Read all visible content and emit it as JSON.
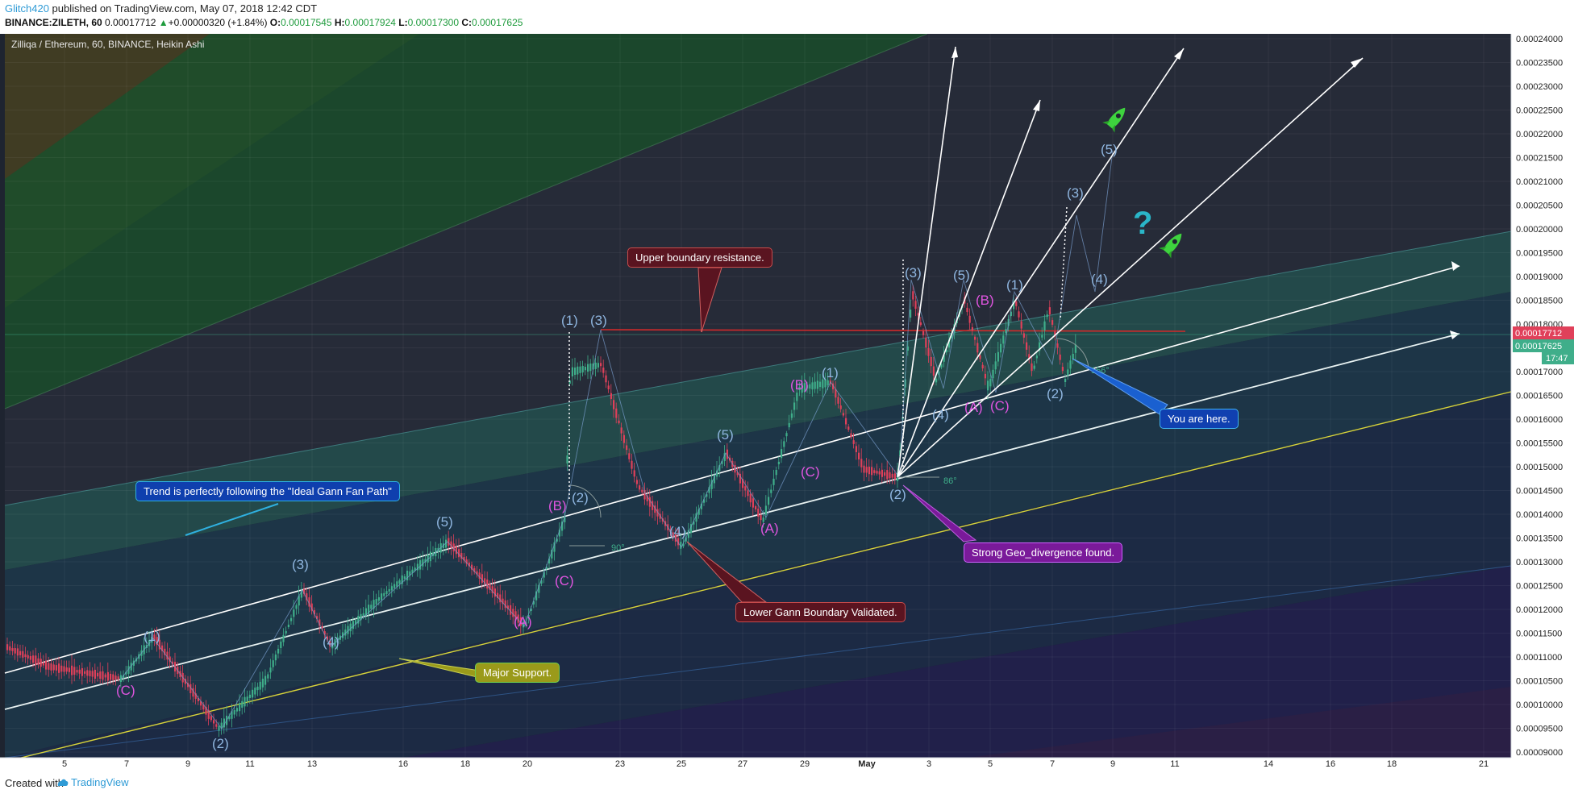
{
  "header": {
    "author": "Glitch420",
    "published_text": "published on TradingView.com, May 07, 2018 12:42 CDT",
    "symbol": "BINANCE:ZILETH, 60",
    "last": "0.00017712",
    "change": "+0.00000320 (+1.84%)",
    "open_label": "O:",
    "open_value": "0.00017545",
    "high_label": "H:",
    "high_value": "0.00017924",
    "low_label": "L:",
    "low_value": "0.00017300",
    "close_label": "C:",
    "close_value": "0.00017625"
  },
  "chart_title": "Zilliqa / Ethereum, 60, BINANCE, Heikin Ashi",
  "price_axis": [
    "0.00024000",
    "0.00023500",
    "0.00023000",
    "0.00022500",
    "0.00022000",
    "0.00021500",
    "0.00021000",
    "0.00020500",
    "0.00020000",
    "0.00019500",
    "0.00019000",
    "0.00018500",
    "0.00018000",
    "0.00017500",
    "0.00017000",
    "0.00016500",
    "0.00016000",
    "0.00015500",
    "0.00015000",
    "0.00014500",
    "0.00014000",
    "0.00013500",
    "0.00013000",
    "0.00012500",
    "0.00012000",
    "0.00011500",
    "0.00011000",
    "0.00010500",
    "0.00010000",
    "0.00009500",
    "0.00009000"
  ],
  "price_tags": {
    "last": "0.00017712",
    "close": "0.00017625",
    "countdown": "17:47"
  },
  "time_axis": [
    "5",
    "7",
    "9",
    "11",
    "13",
    "16",
    "18",
    "20",
    "23",
    "25",
    "27",
    "29",
    "May",
    "3",
    "5",
    "7",
    "9",
    "11",
    "14",
    "16",
    "18",
    "21"
  ],
  "colors": {
    "bg": "#1e2430",
    "up": "#3fae8a",
    "down": "#e0405a",
    "wave_blue": "#8fb6e0",
    "wave_pink": "#e055e0",
    "accent": "#2f9bd6"
  },
  "wave_labels_blue": [
    "(1)",
    "(2)",
    "(3)",
    "(4)",
    "(5)",
    "(1)",
    "(3)",
    "(2)",
    "(4)",
    "(5)",
    "(1)",
    "(2)",
    "(3)",
    "(4)",
    "(5)",
    "(1)",
    "(2)",
    "(3)",
    "(4)",
    "(5)"
  ],
  "wave_labels_pink": [
    "(C)",
    "(A)",
    "(B)",
    "(C)",
    "(A)",
    "(B)",
    "(C)",
    "(A)",
    "(B)",
    "(C)"
  ],
  "annotations": {
    "trend": "Trend is perfectly following the \"Ideal Gann Fan Path\"",
    "upper": "Upper boundary resistance.",
    "lower": "Lower Gann Boundary Validated.",
    "support": "Major Support.",
    "divergence": "Strong Geo_divergence found.",
    "here": "You are here.",
    "question": "?"
  },
  "angles": {
    "a1": "90°",
    "a2": "86°",
    "a3": "156°"
  },
  "footer": {
    "created": "Created with",
    "brand": "TradingView"
  }
}
